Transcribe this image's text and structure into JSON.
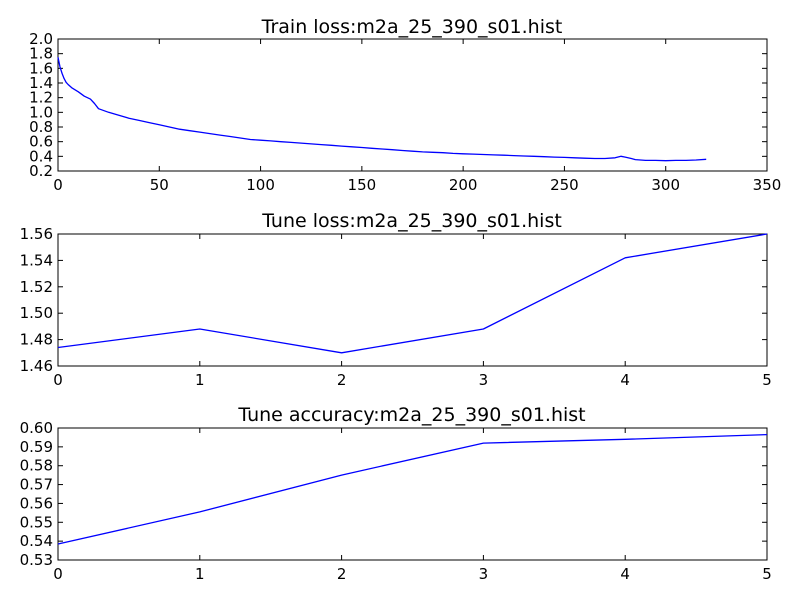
{
  "chart_data": [
    {
      "type": "line",
      "title": "Train loss:m2a_25_390_s01.hist",
      "xlabel": "",
      "ylabel": "",
      "xlim": [
        0,
        350
      ],
      "ylim": [
        0.2,
        2.0
      ],
      "xticks": [
        "0",
        "50",
        "100",
        "150",
        "200",
        "250",
        "300",
        "350"
      ],
      "yticks": [
        "0.2",
        "0.4",
        "0.6",
        "0.8",
        "1.0",
        "1.2",
        "1.4",
        "1.6",
        "1.8",
        "2.0"
      ],
      "grid": false,
      "color": "#0000ff",
      "series": [
        {
          "name": "train loss",
          "x": [
            0,
            1,
            2,
            3,
            4,
            5,
            7,
            10,
            13,
            16,
            18,
            20,
            25,
            30,
            35,
            40,
            45,
            50,
            55,
            60,
            65,
            70,
            75,
            80,
            85,
            90,
            95,
            100,
            105,
            110,
            115,
            120,
            125,
            130,
            135,
            140,
            145,
            150,
            155,
            160,
            165,
            170,
            175,
            180,
            185,
            190,
            195,
            200,
            205,
            210,
            215,
            220,
            225,
            230,
            235,
            240,
            245,
            250,
            255,
            260,
            265,
            270,
            275,
            278,
            280,
            283,
            285,
            290,
            295,
            300,
            305,
            310,
            315,
            320
          ],
          "y": [
            1.75,
            1.62,
            1.53,
            1.46,
            1.41,
            1.38,
            1.33,
            1.28,
            1.22,
            1.18,
            1.12,
            1.05,
            1.0,
            0.96,
            0.92,
            0.89,
            0.86,
            0.83,
            0.8,
            0.77,
            0.75,
            0.73,
            0.71,
            0.69,
            0.67,
            0.65,
            0.63,
            0.62,
            0.61,
            0.6,
            0.59,
            0.58,
            0.57,
            0.56,
            0.55,
            0.54,
            0.53,
            0.52,
            0.51,
            0.5,
            0.49,
            0.48,
            0.47,
            0.46,
            0.455,
            0.45,
            0.44,
            0.435,
            0.43,
            0.425,
            0.42,
            0.415,
            0.41,
            0.405,
            0.4,
            0.395,
            0.39,
            0.385,
            0.38,
            0.375,
            0.37,
            0.37,
            0.38,
            0.4,
            0.39,
            0.37,
            0.355,
            0.345,
            0.345,
            0.34,
            0.345,
            0.345,
            0.35,
            0.36
          ]
        }
      ]
    },
    {
      "type": "line",
      "title": "Tune loss:m2a_25_390_s01.hist",
      "xlabel": "",
      "ylabel": "",
      "xlim": [
        0,
        5
      ],
      "ylim": [
        1.46,
        1.56
      ],
      "xticks": [
        "0",
        "1",
        "2",
        "3",
        "4",
        "5"
      ],
      "yticks": [
        "1.46",
        "1.48",
        "1.50",
        "1.52",
        "1.54",
        "1.56"
      ],
      "grid": false,
      "color": "#0000ff",
      "series": [
        {
          "name": "tune loss",
          "x": [
            0,
            1,
            2,
            3,
            4,
            5
          ],
          "y": [
            1.474,
            1.488,
            1.47,
            1.488,
            1.542,
            1.56
          ]
        }
      ]
    },
    {
      "type": "line",
      "title": "Tune accuracy:m2a_25_390_s01.hist",
      "xlabel": "",
      "ylabel": "",
      "xlim": [
        0,
        5
      ],
      "ylim": [
        0.53,
        0.6
      ],
      "xticks": [
        "0",
        "1",
        "2",
        "3",
        "4",
        "5"
      ],
      "yticks": [
        "0.53",
        "0.54",
        "0.55",
        "0.56",
        "0.57",
        "0.58",
        "0.59",
        "0.60"
      ],
      "grid": false,
      "color": "#0000ff",
      "series": [
        {
          "name": "tune accuracy",
          "x": [
            0,
            1,
            2,
            3,
            4,
            5
          ],
          "y": [
            0.5385,
            0.5555,
            0.575,
            0.592,
            0.594,
            0.5965
          ]
        }
      ]
    }
  ]
}
